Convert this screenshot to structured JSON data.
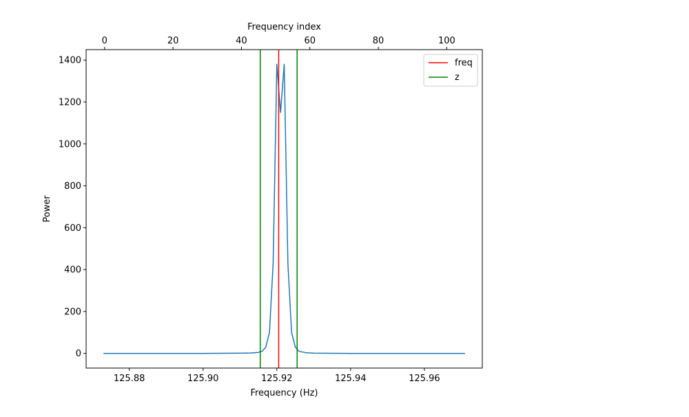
{
  "chart_data": {
    "type": "line",
    "title": "",
    "xlabel": "Frequency (Hz)",
    "ylabel": "Power",
    "top_xlabel": "Frequency index",
    "xlim": [
      125.8683,
      125.9757
    ],
    "ylim": [
      -70,
      1450
    ],
    "top_xlim": [
      -5.4,
      110.4
    ],
    "xticks": [
      125.88,
      125.9,
      125.92,
      125.94,
      125.96
    ],
    "xtick_labels": [
      "125.88",
      "125.90",
      "125.92",
      "125.94",
      "125.96"
    ],
    "yticks": [
      0,
      200,
      400,
      600,
      800,
      1000,
      1200,
      1400
    ],
    "ytick_labels": [
      "0",
      "200",
      "400",
      "600",
      "800",
      "1000",
      "1200",
      "1400"
    ],
    "top_xticks": [
      0,
      20,
      40,
      60,
      80,
      100
    ],
    "top_xtick_labels": [
      "0",
      "20",
      "40",
      "60",
      "80",
      "100"
    ],
    "grid": false,
    "legend_position": "top-right",
    "colors": {
      "series": "#1f77b4",
      "freq": "#ff0000",
      "z": "#008000"
    },
    "series": [
      {
        "x": [
          125.873,
          125.88,
          125.89,
          125.9,
          125.91,
          125.913,
          125.915,
          125.916,
          125.917,
          125.918,
          125.919,
          125.92,
          125.921,
          125.922,
          125.923,
          125.924,
          125.925,
          125.926,
          125.928,
          125.93,
          125.94,
          125.95,
          125.96,
          125.971
        ],
        "values": [
          0,
          0,
          0,
          0,
          1,
          2,
          5,
          10,
          30,
          100,
          430,
          1380,
          1150,
          1380,
          430,
          100,
          30,
          10,
          3,
          1,
          0,
          0,
          0,
          0
        ]
      }
    ],
    "vlines": [
      {
        "name": "freq",
        "x": 125.9205
      },
      {
        "name": "z",
        "x": 125.9155
      },
      {
        "name": "z",
        "x": 125.9255
      }
    ],
    "legend": [
      {
        "label": "freq",
        "color": "#ff0000"
      },
      {
        "label": "z",
        "color": "#008000"
      }
    ]
  }
}
